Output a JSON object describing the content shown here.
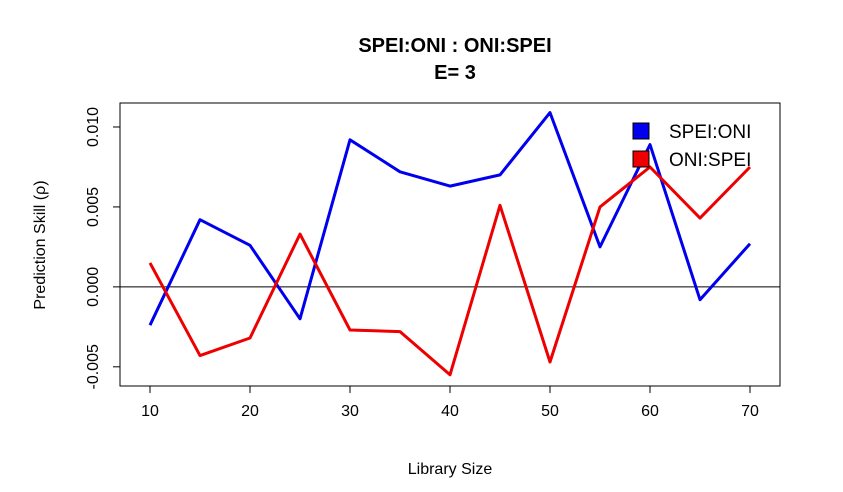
{
  "chart_data": {
    "type": "line",
    "title": "SPEI:ONI  :  ONI:SPEI",
    "subtitle": "E= 3",
    "xlabel": "Library Size",
    "ylabel": "Prediction Skill (ρ)",
    "xlim": [
      7,
      73
    ],
    "ylim": [
      -0.0062,
      0.0115
    ],
    "x_ticks": [
      10,
      20,
      30,
      40,
      50,
      60,
      70
    ],
    "y_ticks": [
      -0.005,
      0.0,
      0.005,
      0.01
    ],
    "y_tick_labels": [
      "-0.005",
      "0.000",
      "0.005",
      "0.010"
    ],
    "hline": 0,
    "legend_position": "top-right",
    "x": [
      10,
      15,
      20,
      25,
      30,
      35,
      40,
      45,
      50,
      55,
      60,
      65,
      70
    ],
    "series": [
      {
        "name": "SPEI:ONI",
        "color": "#0000ee",
        "values": [
          -0.0024,
          0.0042,
          0.0026,
          -0.002,
          0.0092,
          0.0072,
          0.0063,
          0.007,
          0.0109,
          0.0025,
          0.0089,
          -0.0008,
          0.0027
        ]
      },
      {
        "name": "ONI:SPEI",
        "color": "#ee0000",
        "values": [
          0.0015,
          -0.0043,
          -0.0032,
          0.0033,
          -0.0027,
          -0.0028,
          -0.0055,
          0.0051,
          -0.0047,
          0.005,
          0.0075,
          0.0043,
          0.0075
        ]
      }
    ]
  }
}
